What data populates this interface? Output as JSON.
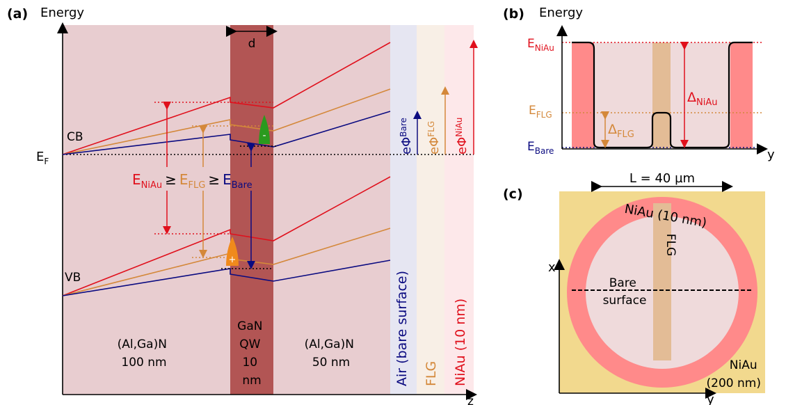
{
  "panel_a": {
    "label": "(a)",
    "energy_axis": "Energy",
    "z_axis": "z",
    "ef_main": "E",
    "ef_sub": "F",
    "cb": "CB",
    "vb": "VB",
    "d": "d",
    "barrier_left": [
      "(Al,Ga)N",
      "100 nm"
    ],
    "qw": [
      "GaN",
      "QW",
      "10",
      "nm"
    ],
    "barrier_right": [
      "(Al,Ga)N",
      "50 nm"
    ],
    "air_label": "Air (bare surface)",
    "flg_label": "FLG",
    "niau_label": "NiAu (10 nm)",
    "phi_bare_main": "eΦ",
    "phi_bare_sub": "Bare",
    "phi_flg_main": "eΦ",
    "phi_flg_sub": "FLG",
    "phi_niau_main": "eΦ",
    "phi_niau_sub": "NiAu",
    "ineq": {
      "e1": "E",
      "s1": "NiAu",
      "geq": "≥",
      "e2": "E",
      "s2": "FLG",
      "e3": "E",
      "s3": "Bare"
    },
    "electron": "-",
    "hole": "+"
  },
  "panel_b": {
    "label": "(b)",
    "energy_axis": "Energy",
    "y_axis": "y",
    "e_niau": "E",
    "e_niau_sub": "NiAu",
    "e_flg": "E",
    "e_flg_sub": "FLG",
    "e_bare": "E",
    "e_bare_sub": "Bare",
    "delta_niau": "Δ",
    "delta_niau_sub": "NiAu",
    "delta_flg": "Δ",
    "delta_flg_sub": "FLG"
  },
  "panel_c": {
    "label": "(c)",
    "length": "L = 40 µm",
    "ring_label": "NiAu (10 nm)",
    "flg": "FLG",
    "bare": [
      "Bare",
      "surface"
    ],
    "outer": [
      "NiAu",
      "(200 nm)"
    ],
    "x_axis": "x",
    "y_axis": "y"
  },
  "colors": {
    "niau": "#e0101c",
    "flg": "#d4883a",
    "bare": "#0a0a80",
    "barrier": "#e8cdd0",
    "qw": "#b25554",
    "ring": "#ff8a8a",
    "gold": "#f2d98e",
    "electron": "#2a9a1e",
    "hole": "#f08a1c"
  }
}
